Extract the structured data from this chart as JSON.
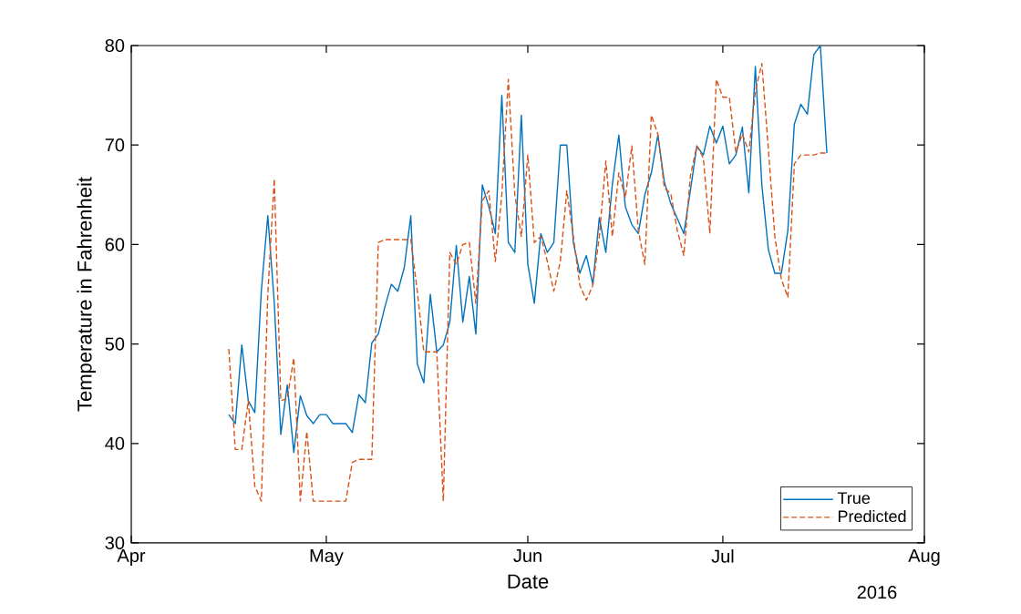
{
  "chart_data": {
    "type": "line",
    "xlabel": "Date",
    "ylabel": "Temperature in Fahrenheit",
    "annotations": [
      "2016"
    ],
    "x": [
      "2016-04-16",
      "2016-04-17",
      "2016-04-18",
      "2016-04-19",
      "2016-04-20",
      "2016-04-21",
      "2016-04-22",
      "2016-04-23",
      "2016-04-24",
      "2016-04-25",
      "2016-04-26",
      "2016-04-27",
      "2016-04-28",
      "2016-04-29",
      "2016-04-30",
      "2016-05-01",
      "2016-05-02",
      "2016-05-03",
      "2016-05-04",
      "2016-05-05",
      "2016-05-06",
      "2016-05-07",
      "2016-05-08",
      "2016-05-09",
      "2016-05-10",
      "2016-05-11",
      "2016-05-12",
      "2016-05-13",
      "2016-05-14",
      "2016-05-15",
      "2016-05-16",
      "2016-05-17",
      "2016-05-18",
      "2016-05-19",
      "2016-05-20",
      "2016-05-21",
      "2016-05-22",
      "2016-05-23",
      "2016-05-24",
      "2016-05-25",
      "2016-05-26",
      "2016-05-27",
      "2016-05-28",
      "2016-05-29",
      "2016-05-30",
      "2016-05-31",
      "2016-06-01",
      "2016-06-02",
      "2016-06-03",
      "2016-06-04",
      "2016-06-05",
      "2016-06-06",
      "2016-06-07",
      "2016-06-08",
      "2016-06-09",
      "2016-06-10",
      "2016-06-11",
      "2016-06-12",
      "2016-06-13",
      "2016-06-14",
      "2016-06-15",
      "2016-06-16",
      "2016-06-17",
      "2016-06-18",
      "2016-06-19",
      "2016-06-20",
      "2016-06-21",
      "2016-06-22",
      "2016-06-23",
      "2016-06-24",
      "2016-06-25",
      "2016-06-26",
      "2016-06-27",
      "2016-06-28",
      "2016-06-29",
      "2016-06-30",
      "2016-07-01",
      "2016-07-02",
      "2016-07-03",
      "2016-07-04",
      "2016-07-05",
      "2016-07-06",
      "2016-07-07",
      "2016-07-08",
      "2016-07-09",
      "2016-07-10",
      "2016-07-11",
      "2016-07-12",
      "2016-07-13",
      "2016-07-14",
      "2016-07-15",
      "2016-07-16",
      "2016-07-17"
    ],
    "series": [
      {
        "name": "True",
        "color": "#0072bd",
        "line_style": "solid",
        "values": [
          42.9,
          42.0,
          49.9,
          44.3,
          43.1,
          55.3,
          62.9,
          54.1,
          40.9,
          45.9,
          39.1,
          44.8,
          42.8,
          42.0,
          42.9,
          42.9,
          42.0,
          42.0,
          42.0,
          41.1,
          44.9,
          44.1,
          50.1,
          51.0,
          53.7,
          56.0,
          55.3,
          57.7,
          62.9,
          48.0,
          46.1,
          55.0,
          49.2,
          49.9,
          52.2,
          59.9,
          52.2,
          56.8,
          51.0,
          66.0,
          63.8,
          61.1,
          75.0,
          60.2,
          59.2,
          73.0,
          58.0,
          54.1,
          61.1,
          59.2,
          60.2,
          70.0,
          70.0,
          60.2,
          57.1,
          58.9,
          56.0,
          62.7,
          59.2,
          66.0,
          71.0,
          63.8,
          62.0,
          61.1,
          65.0,
          67.2,
          71.0,
          66.3,
          64.1,
          62.6,
          61.1,
          65.4,
          69.9,
          69.0,
          71.9,
          70.2,
          71.9,
          68.1,
          69.0,
          71.8,
          65.2,
          77.9,
          66.0,
          59.5,
          57.1,
          57.1,
          61.4,
          72.1,
          74.1,
          73.1,
          79.1,
          80.0,
          69.2
        ]
      },
      {
        "name": "Predicted",
        "color": "#d95319",
        "line_style": "dashed",
        "values": [
          49.5,
          39.4,
          39.4,
          44.3,
          35.7,
          34.2,
          55.0,
          66.6,
          44.3,
          44.5,
          48.6,
          34.2,
          41.2,
          34.2,
          34.2,
          34.2,
          34.2,
          34.2,
          34.2,
          38.1,
          38.4,
          38.4,
          38.4,
          60.2,
          60.5,
          60.5,
          60.5,
          60.5,
          60.5,
          55.3,
          49.2,
          49.2,
          49.2,
          34.2,
          59.2,
          58.0,
          60.0,
          60.2,
          54.1,
          64.4,
          65.4,
          58.3,
          65.0,
          76.6,
          65.0,
          60.8,
          69.0,
          60.2,
          60.8,
          58.3,
          55.3,
          58.3,
          65.4,
          60.8,
          55.9,
          54.4,
          55.9,
          60.8,
          68.4,
          60.8,
          67.2,
          64.7,
          69.9,
          61.4,
          58.0,
          73.0,
          71.1,
          65.7,
          65.1,
          61.4,
          58.9,
          66.9,
          69.9,
          68.7,
          61.1,
          76.6,
          74.8,
          74.8,
          69.3,
          71.1,
          69.3,
          75.4,
          78.2,
          69.6,
          60.8,
          56.5,
          54.7,
          68.1,
          69.0,
          69.0,
          69.0,
          69.2,
          69.2
        ]
      }
    ],
    "xlim": [
      "2016-04-01",
      "2016-08-01"
    ],
    "xticks": [
      {
        "value": "2016-04-01",
        "label": "Apr"
      },
      {
        "value": "2016-05-01",
        "label": "May"
      },
      {
        "value": "2016-06-01",
        "label": "Jun"
      },
      {
        "value": "2016-07-01",
        "label": "Jul"
      },
      {
        "value": "2016-08-01",
        "label": "Aug"
      }
    ],
    "ylim": [
      30,
      80
    ],
    "yticks": [
      30,
      40,
      50,
      60,
      70,
      80
    ],
    "legend": "bottom right"
  }
}
